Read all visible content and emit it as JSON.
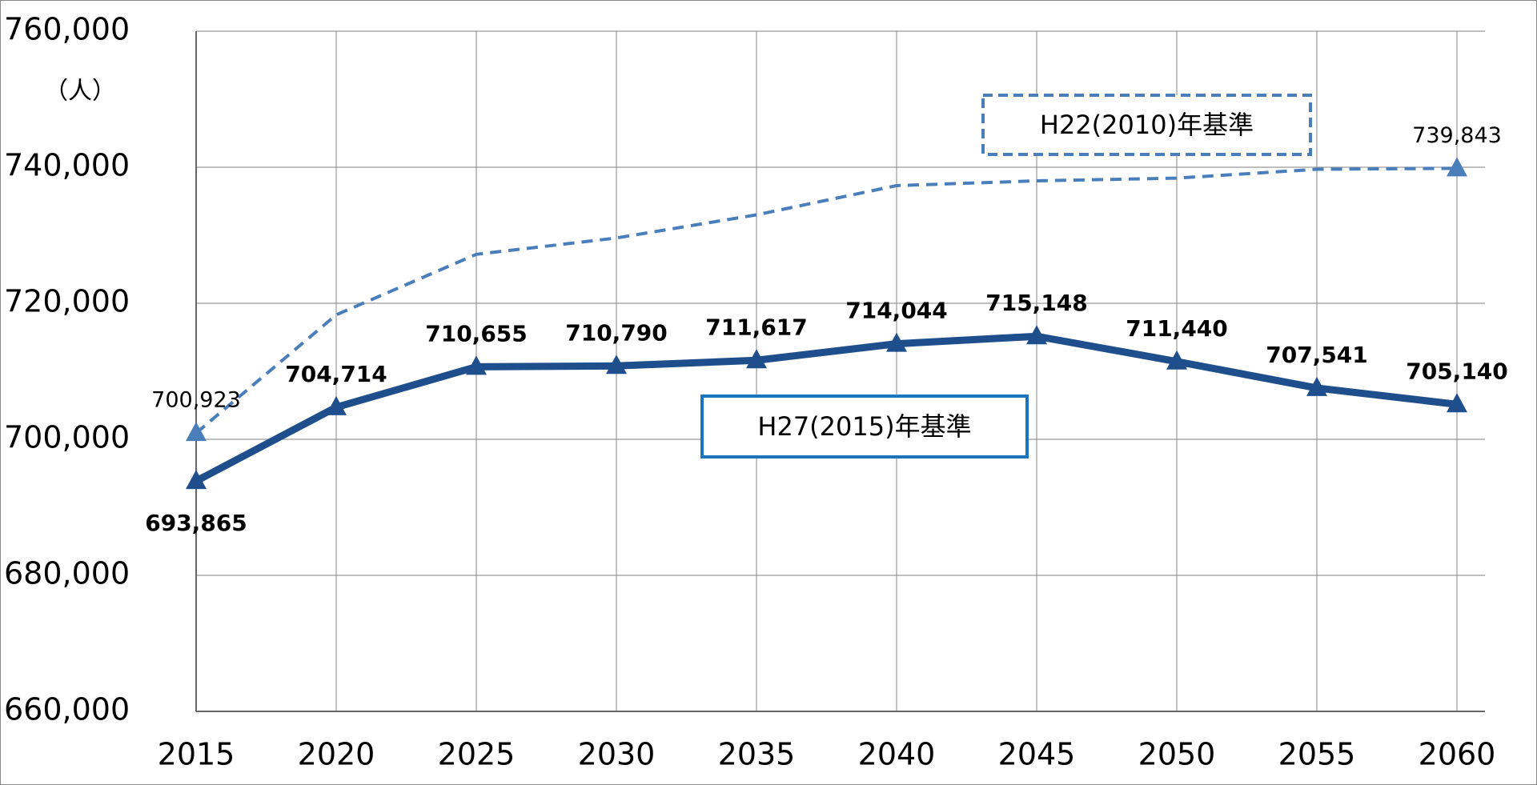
{
  "chart_data": {
    "type": "line",
    "y_unit": "（人）",
    "x": [
      2015,
      2020,
      2025,
      2030,
      2035,
      2040,
      2045,
      2050,
      2055,
      2060
    ],
    "xlim": [
      2015,
      2061
    ],
    "xticks": [
      2015,
      2020,
      2025,
      2030,
      2035,
      2040,
      2045,
      2050,
      2055,
      2060
    ],
    "ylim": [
      660000,
      760000
    ],
    "yticks": [
      {
        "value": 660000,
        "label": "660,000"
      },
      {
        "value": 680000,
        "label": "680,000"
      },
      {
        "value": 700000,
        "label": "700,000"
      },
      {
        "value": 720000,
        "label": "720,000"
      },
      {
        "value": 740000,
        "label": "740,000"
      },
      {
        "value": 760000,
        "label": "760,000"
      }
    ],
    "grid": true,
    "series": [
      {
        "name": "H22(2010)年基準",
        "color": "#4a7ebb",
        "dashed": true,
        "values": [
          700923,
          718300,
          727200,
          729600,
          733000,
          737300,
          738000,
          738400,
          739700,
          739843
        ],
        "value_labels": [
          "700,923",
          null,
          null,
          null,
          null,
          null,
          null,
          null,
          null,
          "739,843"
        ]
      },
      {
        "name": "H27(2015)年基準",
        "color": "#1f4e8c",
        "dashed": false,
        "values": [
          693865,
          704714,
          710655,
          710790,
          711617,
          714044,
          715148,
          711440,
          707541,
          705140
        ],
        "value_labels": [
          "693,865",
          "704,714",
          "710,655",
          "710,790",
          "711,617",
          "714,044",
          "715,148",
          "711,440",
          "707,541",
          "705,140"
        ]
      }
    ]
  }
}
